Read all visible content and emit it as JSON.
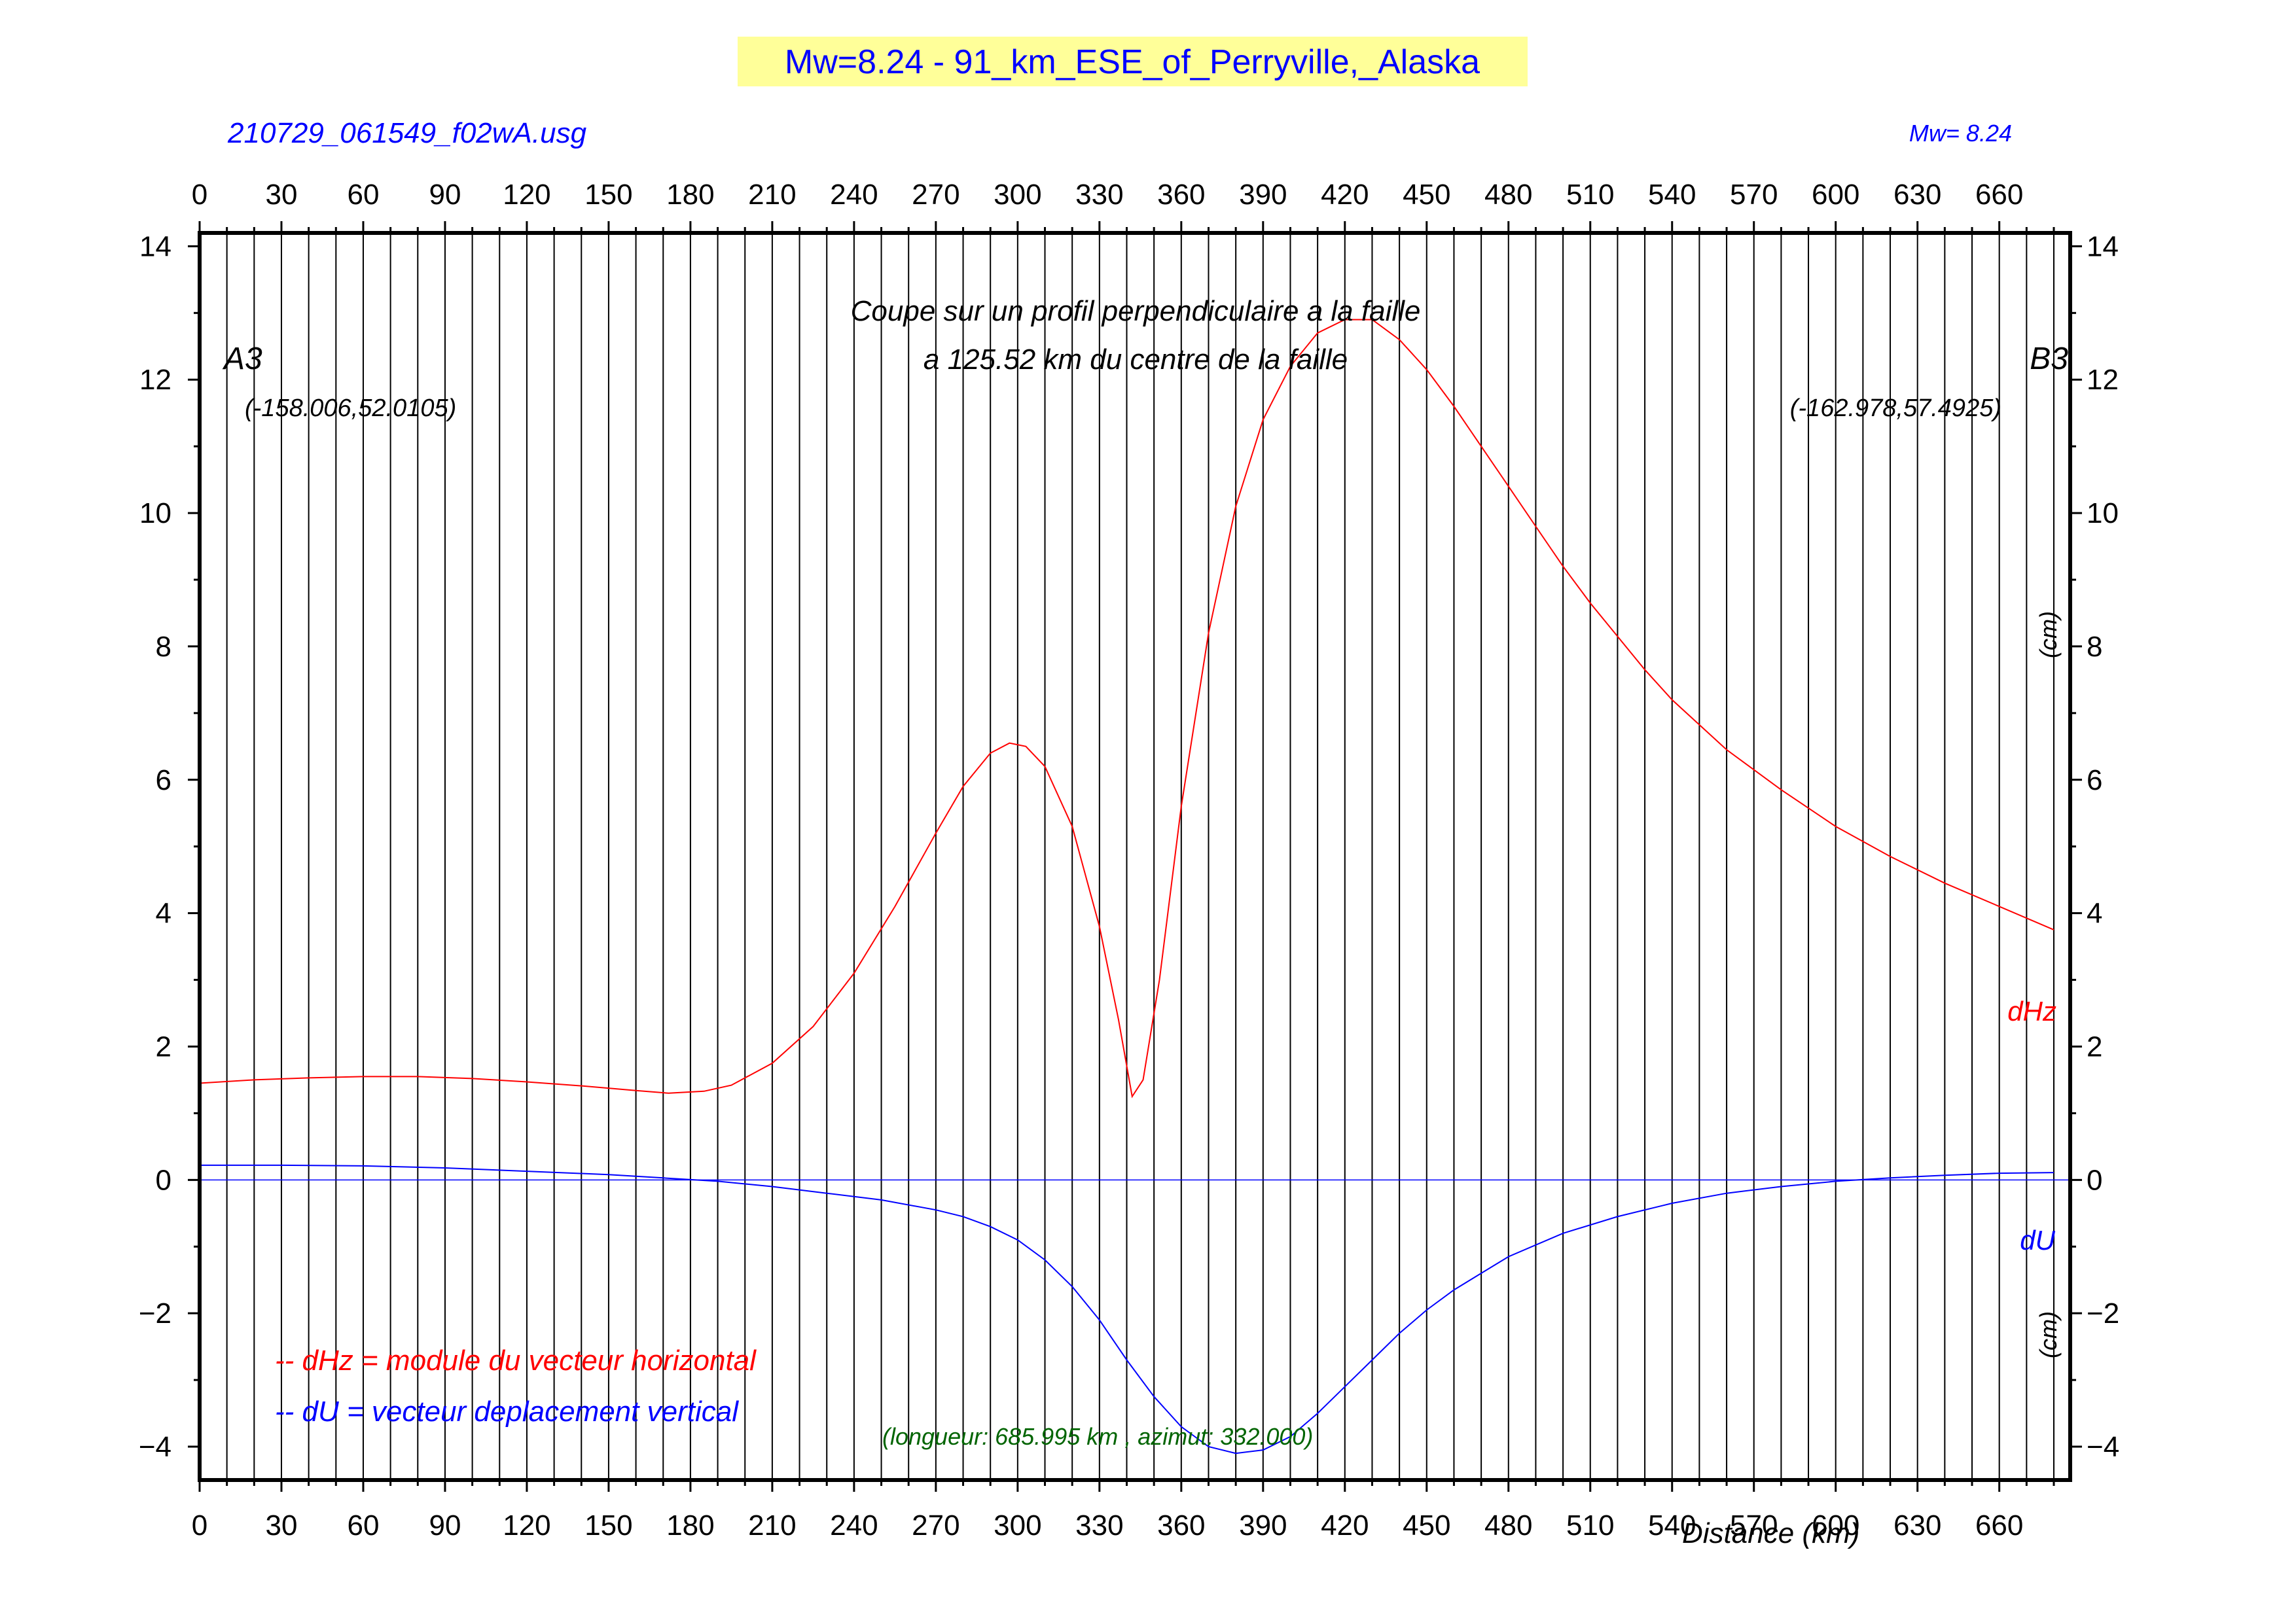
{
  "header": {
    "title": "Mw=8.24 - 91_km_ESE_of_Perryville,_Alaska",
    "title_bg": "#ffff99",
    "title_color": "#0000ff",
    "file_label": "210729_061549_f02wA.usg",
    "mw_label": "Mw= 8.24"
  },
  "annotations": {
    "profile_line1": "Coupe sur un profil perpendiculaire a la faille",
    "profile_line2": "a 125.52 km du centre de la faille",
    "point_a_name": "A3",
    "point_a_coords": "(-158.006,52.0105)",
    "point_b_name": "B3",
    "point_b_coords": "(-162.978,57.4925)",
    "unit_upper": "(cm)",
    "unit_lower": "(cm)",
    "dhz_label": "dHz",
    "du_label": "dU",
    "legend_dhz": "-- dHz = module du vecteur horizontal",
    "legend_du": "-- dU =  vecteur deplacement vertical",
    "length_azimuth": "(longueur: 685.995 km , azimut: 332.000)",
    "xlabel": "Distance (km)"
  },
  "colors": {
    "dhz": "#ff0000",
    "du": "#0000ff",
    "legend_info": "#006400",
    "text": "#000000"
  },
  "chart_data": {
    "type": "line",
    "xlabel": "Distance (km)",
    "ylabel": "",
    "xlim": [
      0,
      686
    ],
    "ylim": [
      -4.5,
      14.2
    ],
    "x_ticks": [
      0,
      30,
      60,
      90,
      120,
      150,
      180,
      210,
      240,
      270,
      300,
      330,
      360,
      390,
      420,
      450,
      480,
      510,
      540,
      570,
      600,
      630,
      660
    ],
    "y_ticks": [
      -4,
      -2,
      0,
      2,
      4,
      6,
      8,
      10,
      12,
      14
    ],
    "y_tick_labels": [
      "−4",
      "−2",
      "0",
      "2",
      "4",
      "6",
      "8",
      "10",
      "12",
      "14"
    ],
    "vertical_grid_step": 10,
    "horizontal_reference": 0,
    "series": [
      {
        "name": "dHz",
        "color": "#ff0000",
        "points": [
          [
            0,
            1.45
          ],
          [
            20,
            1.5
          ],
          [
            40,
            1.53
          ],
          [
            60,
            1.55
          ],
          [
            80,
            1.55
          ],
          [
            100,
            1.52
          ],
          [
            120,
            1.47
          ],
          [
            140,
            1.41
          ],
          [
            160,
            1.34
          ],
          [
            172,
            1.3
          ],
          [
            185,
            1.33
          ],
          [
            195,
            1.42
          ],
          [
            210,
            1.75
          ],
          [
            225,
            2.3
          ],
          [
            240,
            3.1
          ],
          [
            255,
            4.1
          ],
          [
            270,
            5.2
          ],
          [
            280,
            5.9
          ],
          [
            290,
            6.4
          ],
          [
            297,
            6.55
          ],
          [
            303,
            6.5
          ],
          [
            310,
            6.2
          ],
          [
            320,
            5.3
          ],
          [
            330,
            3.8
          ],
          [
            337,
            2.4
          ],
          [
            342,
            1.25
          ],
          [
            346,
            1.5
          ],
          [
            352,
            3.0
          ],
          [
            360,
            5.6
          ],
          [
            370,
            8.2
          ],
          [
            380,
            10.1
          ],
          [
            390,
            11.4
          ],
          [
            400,
            12.2
          ],
          [
            410,
            12.7
          ],
          [
            420,
            12.9
          ],
          [
            430,
            12.9
          ],
          [
            440,
            12.6
          ],
          [
            450,
            12.15
          ],
          [
            460,
            11.6
          ],
          [
            470,
            11.0
          ],
          [
            480,
            10.4
          ],
          [
            490,
            9.8
          ],
          [
            500,
            9.2
          ],
          [
            510,
            8.65
          ],
          [
            520,
            8.15
          ],
          [
            530,
            7.65
          ],
          [
            540,
            7.2
          ],
          [
            560,
            6.45
          ],
          [
            580,
            5.85
          ],
          [
            600,
            5.3
          ],
          [
            620,
            4.85
          ],
          [
            640,
            4.45
          ],
          [
            660,
            4.1
          ],
          [
            680,
            3.75
          ]
        ]
      },
      {
        "name": "dU",
        "color": "#0000ff",
        "points": [
          [
            0,
            0.22
          ],
          [
            30,
            0.22
          ],
          [
            60,
            0.21
          ],
          [
            90,
            0.18
          ],
          [
            120,
            0.13
          ],
          [
            150,
            0.08
          ],
          [
            170,
            0.03
          ],
          [
            190,
            -0.02
          ],
          [
            210,
            -0.1
          ],
          [
            230,
            -0.2
          ],
          [
            250,
            -0.3
          ],
          [
            270,
            -0.45
          ],
          [
            280,
            -0.55
          ],
          [
            290,
            -0.7
          ],
          [
            300,
            -0.9
          ],
          [
            310,
            -1.2
          ],
          [
            320,
            -1.6
          ],
          [
            330,
            -2.1
          ],
          [
            340,
            -2.7
          ],
          [
            350,
            -3.25
          ],
          [
            360,
            -3.7
          ],
          [
            370,
            -4.0
          ],
          [
            380,
            -4.1
          ],
          [
            390,
            -4.05
          ],
          [
            400,
            -3.85
          ],
          [
            410,
            -3.5
          ],
          [
            420,
            -3.1
          ],
          [
            430,
            -2.7
          ],
          [
            440,
            -2.3
          ],
          [
            450,
            -1.95
          ],
          [
            460,
            -1.65
          ],
          [
            470,
            -1.4
          ],
          [
            480,
            -1.15
          ],
          [
            500,
            -0.8
          ],
          [
            520,
            -0.55
          ],
          [
            540,
            -0.35
          ],
          [
            560,
            -0.2
          ],
          [
            580,
            -0.1
          ],
          [
            600,
            -0.02
          ],
          [
            620,
            0.03
          ],
          [
            640,
            0.07
          ],
          [
            660,
            0.1
          ],
          [
            680,
            0.11
          ]
        ]
      }
    ],
    "legend": {
      "placement": "bottom-left",
      "entries": [
        "-- dHz = module du vecteur horizontal",
        "-- dU =  vecteur deplacement vertical"
      ]
    }
  }
}
